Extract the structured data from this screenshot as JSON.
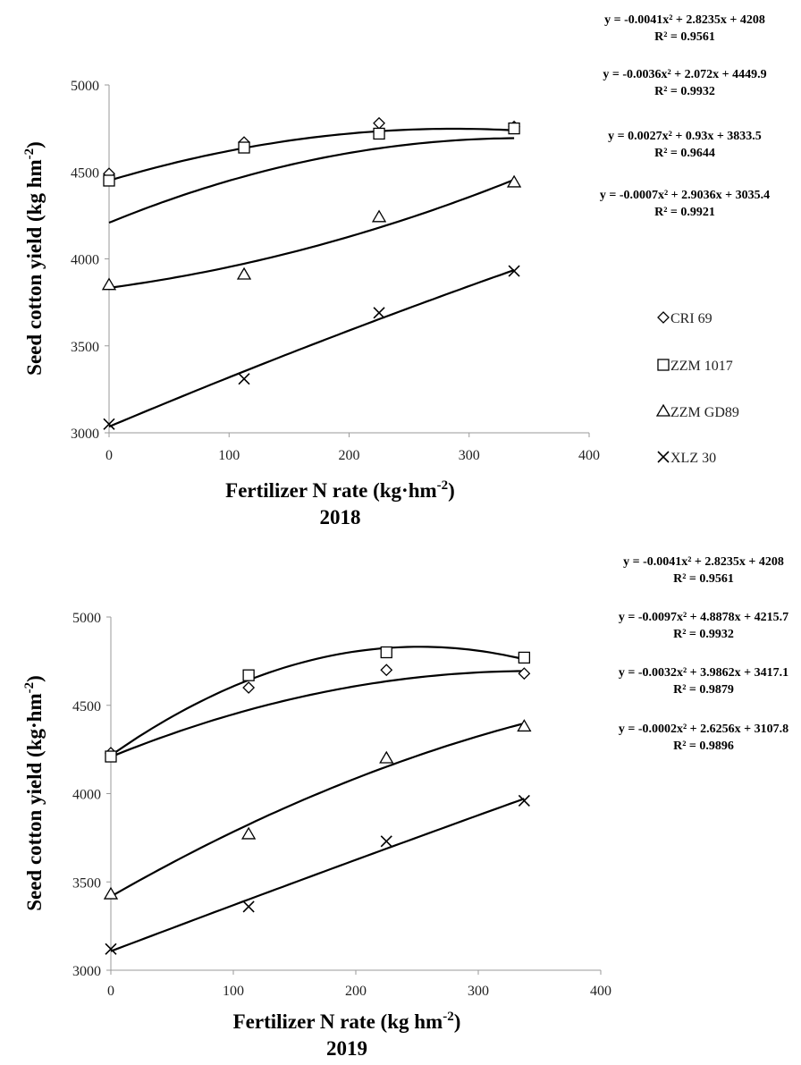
{
  "chart_data": [
    {
      "type": "scatter",
      "year_label": "2018",
      "xlabel": "Fertilizer N rate (kg·hm",
      "xlabel_sup": "-2",
      "xlabel_tail": ")",
      "ylabel": "Seed cotton yield (kg hm",
      "ylabel_sup": "-2",
      "ylabel_tail": ")",
      "xlim": [
        0,
        400
      ],
      "ylim": [
        3000,
        5000
      ],
      "x_ticks": [
        "0",
        "100",
        "200",
        "300",
        "400"
      ],
      "y_ticks": [
        "3000",
        "3500",
        "4000",
        "4500",
        "5000"
      ],
      "legend": [
        "CRI 69",
        "ZZM 1017",
        "ZZM GD89",
        "XLZ 30"
      ],
      "series": [
        {
          "name": "CRI 69",
          "marker": "diamond",
          "x": [
            0,
            112.5,
            225,
            337.5
          ],
          "y": [
            4490,
            4670,
            4780,
            4760
          ],
          "fit": [
            -0.0041,
            2.8235,
            4208
          ],
          "equation": "y = -0.0041x² + 2.8235x + 4208",
          "r2": "R² = 0.9561"
        },
        {
          "name": "ZZM 1017",
          "marker": "square",
          "x": [
            0,
            112.5,
            225,
            337.5
          ],
          "y": [
            4450,
            4640,
            4720,
            4750
          ],
          "fit": [
            -0.0036,
            2.072,
            4449.9
          ],
          "equation": "y = -0.0036x² + 2.072x + 4449.9",
          "r2": "R² = 0.9932"
        },
        {
          "name": "ZZM GD89",
          "marker": "triangle",
          "x": [
            0,
            112.5,
            225,
            337.5
          ],
          "y": [
            3850,
            3910,
            4240,
            4440
          ],
          "fit": [
            0.0027,
            0.93,
            3833.5
          ],
          "equation": "y = 0.0027x² + 0.93x + 3833.5",
          "r2": "R² = 0.9644"
        },
        {
          "name": "XLZ 30",
          "marker": "cross",
          "x": [
            0,
            112.5,
            225,
            337.5
          ],
          "y": [
            3050,
            3310,
            3690,
            3930
          ],
          "fit": [
            -0.0007,
            2.9036,
            3035.4
          ],
          "equation": "y = -0.0007x² + 2.9036x + 3035.4",
          "r2": "R² = 0.9921"
        }
      ]
    },
    {
      "type": "scatter",
      "year_label": "2019",
      "xlabel": "Fertilizer N rate (kg hm",
      "xlabel_sup": "-2",
      "xlabel_tail": ")",
      "ylabel": "Seed cotton yield (kg·hm",
      "ylabel_sup": "-2",
      "ylabel_tail": ")",
      "xlim": [
        0,
        400
      ],
      "ylim": [
        3000,
        5000
      ],
      "x_ticks": [
        "0",
        "100",
        "200",
        "300",
        "400"
      ],
      "y_ticks": [
        "3000",
        "3500",
        "4000",
        "4500",
        "5000"
      ],
      "series": [
        {
          "name": "CRI 69",
          "marker": "diamond",
          "x": [
            0,
            112.5,
            225,
            337.5
          ],
          "y": [
            4230,
            4600,
            4700,
            4680
          ],
          "fit": [
            -0.0041,
            2.8235,
            4208
          ],
          "equation": "y = -0.0041x² + 2.8235x + 4208",
          "r2": "R² = 0.9561"
        },
        {
          "name": "ZZM 1017",
          "marker": "square",
          "x": [
            0,
            112.5,
            225,
            337.5
          ],
          "y": [
            4210,
            4670,
            4800,
            4770
          ],
          "fit": [
            -0.0097,
            4.8878,
            4215.7
          ],
          "equation": "y = -0.0097x² + 4.8878x + 4215.7",
          "r2": "R² = 0.9932"
        },
        {
          "name": "ZZM GD89",
          "marker": "triangle",
          "x": [
            0,
            112.5,
            225,
            337.5
          ],
          "y": [
            3430,
            3770,
            4200,
            4380
          ],
          "fit": [
            -0.0032,
            3.9862,
            3417.1
          ],
          "equation": "y = -0.0032x² + 3.9862x + 3417.1",
          "r2": "R² = 0.9879"
        },
        {
          "name": "XLZ 30",
          "marker": "cross",
          "x": [
            0,
            112.5,
            225,
            337.5
          ],
          "y": [
            3120,
            3360,
            3730,
            3960
          ],
          "fit": [
            -0.0002,
            2.6256,
            3107.8
          ],
          "equation": "y = -0.0002x² + 2.6256x + 3107.8",
          "r2": "R² = 0.9896"
        }
      ]
    }
  ]
}
